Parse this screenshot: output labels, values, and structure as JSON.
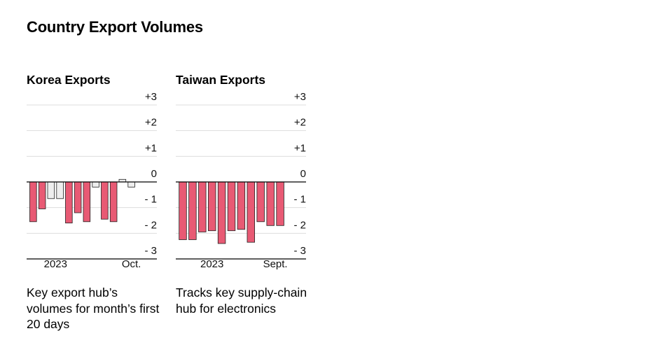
{
  "title": "Country Export Volumes",
  "colors": {
    "negative": "#e85a74",
    "neutral": "#eeeeee",
    "stroke": "#222222",
    "grid": "#dddddd",
    "baseline": "#000000"
  },
  "chart_data": [
    {
      "type": "bar",
      "title": "Korea Exports",
      "description": "Key export hub’s volumes for month’s first 20 days",
      "ylim": [
        -3,
        3
      ],
      "yticks": [
        3,
        2,
        1,
        0,
        -1,
        -2,
        -3
      ],
      "ytick_labels": [
        "+3",
        "+2",
        "+1",
        "0",
        "- 1",
        "- 2",
        "- 3"
      ],
      "x_labels": [
        {
          "text": "2023",
          "index": 3
        },
        {
          "text": "Oct.",
          "index": 11.5
        }
      ],
      "values": [
        -1.55,
        -1.05,
        -0.65,
        -0.65,
        -1.6,
        -1.2,
        -1.55,
        -0.2,
        -1.45,
        -1.55,
        0.1,
        -0.2
      ],
      "highlight": [
        true,
        true,
        false,
        false,
        true,
        true,
        true,
        false,
        true,
        true,
        false,
        false
      ]
    },
    {
      "type": "bar",
      "title": "Taiwan Exports",
      "description": "Tracks key supply-chain hub for electronics",
      "ylim": [
        -3,
        3
      ],
      "yticks": [
        3,
        2,
        1,
        0,
        -1,
        -2,
        -3
      ],
      "ytick_labels": [
        "+3",
        "+2",
        "+1",
        "0",
        "- 1",
        "- 2",
        "- 3"
      ],
      "x_labels": [
        {
          "text": "2023",
          "index": 3.5
        },
        {
          "text": "Sept.",
          "index": 10
        }
      ],
      "values": [
        -2.25,
        -2.25,
        -1.95,
        -1.9,
        -2.4,
        -1.9,
        -1.85,
        -2.35,
        -1.55,
        -1.7,
        -1.7
      ],
      "highlight": [
        true,
        true,
        true,
        true,
        true,
        true,
        true,
        true,
        true,
        true,
        true
      ]
    }
  ]
}
